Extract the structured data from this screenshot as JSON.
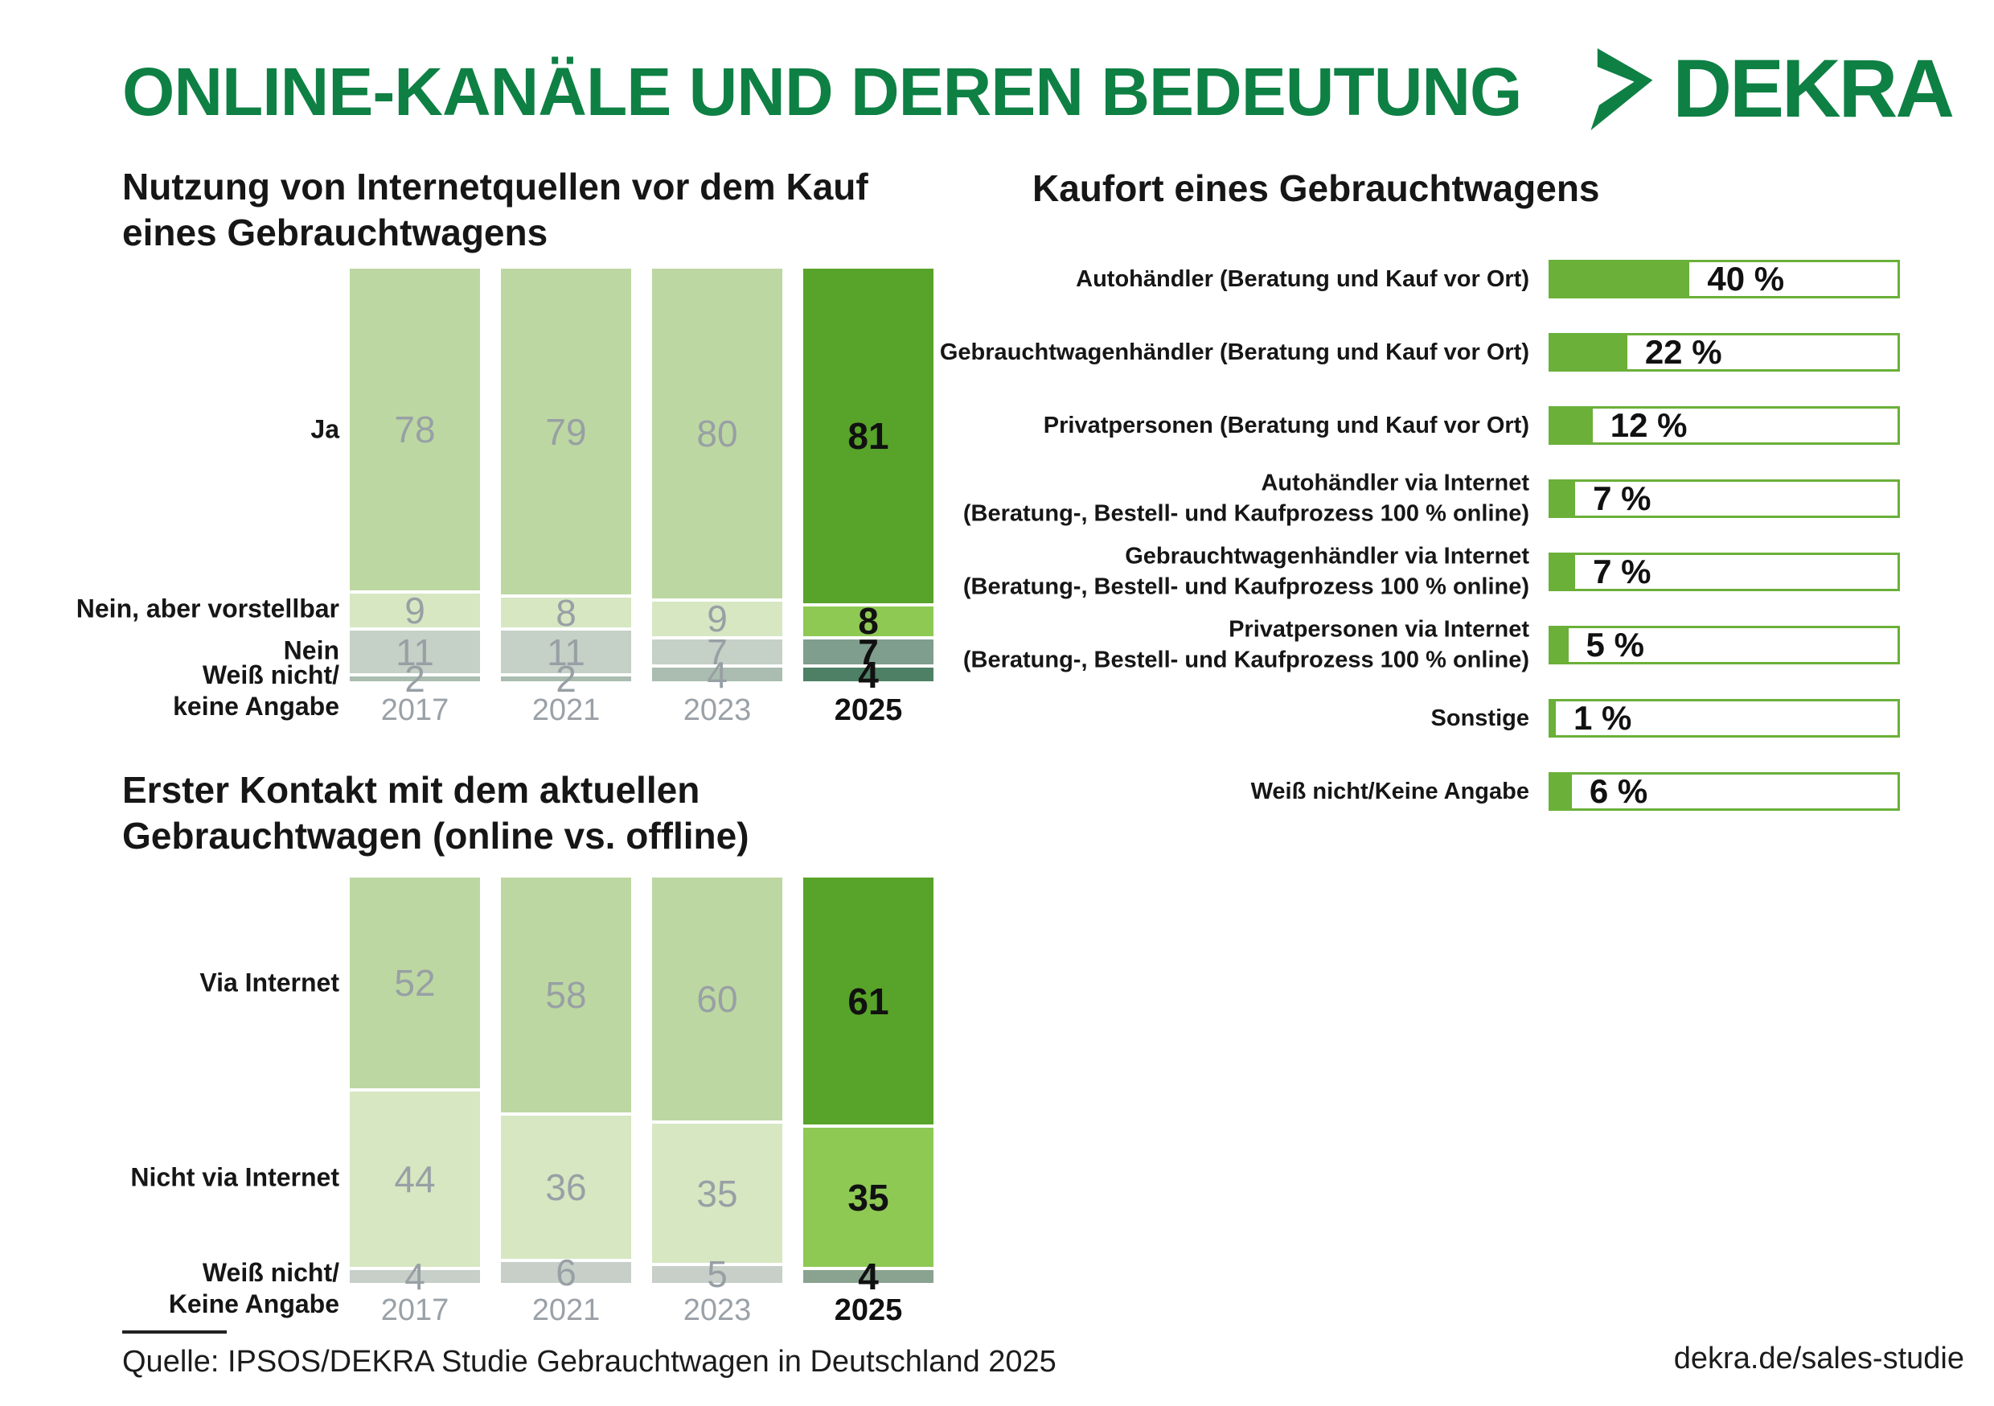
{
  "header": {
    "title": "ONLINE-KANÄLE UND DEREN BEDEUTUNG",
    "brand": "DEKRA"
  },
  "palette": {
    "brand_green": "#0e8044",
    "bar_green": "#6ab039",
    "muted_text": "#9aa1a7",
    "dark_text": "#111111"
  },
  "chart_data": [
    {
      "id": "internetquellen",
      "type": "bar",
      "stacked": true,
      "orientation": "vertical",
      "title": "Nutzung von Internetquellen vor dem Kauf eines Gebrauchtwagens",
      "unit": "percent",
      "ylim": [
        0,
        100
      ],
      "categories": [
        "2017",
        "2021",
        "2023",
        "2025"
      ],
      "highlight_category": "2025",
      "series": [
        {
          "name": "Ja",
          "values": [
            78,
            79,
            80,
            81
          ]
        },
        {
          "name": "Nein, aber vorstellbar",
          "values": [
            9,
            8,
            9,
            8
          ]
        },
        {
          "name": "Nein",
          "values": [
            11,
            11,
            7,
            7
          ]
        },
        {
          "name": "Weiß nicht/\nkeine Angabe",
          "values": [
            2,
            2,
            4,
            4
          ]
        }
      ],
      "colors_muted": [
        "#bdd7a2",
        "#d6e7c2",
        "#c5d0c6",
        "#aabdb0"
      ],
      "colors_highlight": [
        "#58a32a",
        "#8ec954",
        "#7f9e8e",
        "#4e8065"
      ]
    },
    {
      "id": "erster_kontakt",
      "type": "bar",
      "stacked": true,
      "orientation": "vertical",
      "title": "Erster Kontakt mit dem aktuellen Gebrauchtwagen (online vs. offline)",
      "unit": "percent",
      "ylim": [
        0,
        100
      ],
      "categories": [
        "2017",
        "2021",
        "2023",
        "2025"
      ],
      "highlight_category": "2025",
      "series": [
        {
          "name": "Via Internet",
          "values": [
            52,
            58,
            60,
            61
          ]
        },
        {
          "name": "Nicht via Internet",
          "values": [
            44,
            36,
            35,
            35
          ]
        },
        {
          "name": "Weiß nicht/\nKeine Angabe",
          "values": [
            4,
            6,
            5,
            4
          ]
        }
      ],
      "colors_muted": [
        "#bdd7a2",
        "#d6e7c2",
        "#c7cfc8"
      ],
      "colors_highlight": [
        "#58a32a",
        "#8ec954",
        "#8aa391"
      ]
    },
    {
      "id": "kaufort",
      "type": "bar",
      "orientation": "horizontal",
      "title": "Kaufort eines Gebrauchtwagens",
      "unit": "percent",
      "xlim": [
        0,
        100
      ],
      "rows": [
        {
          "label_lines": [
            "Autohändler (Beratung und Kauf vor Ort)"
          ],
          "value": 40,
          "value_label": "40 %"
        },
        {
          "label_lines": [
            "Gebrauchtwagenhändler (Beratung und Kauf vor Ort)"
          ],
          "value": 22,
          "value_label": "22 %"
        },
        {
          "label_lines": [
            "Privatpersonen (Beratung und Kauf vor Ort)"
          ],
          "value": 12,
          "value_label": "12 %"
        },
        {
          "label_lines": [
            "Autohändler via Internet",
            "(Beratung-, Bestell- und Kaufprozess 100 % online)"
          ],
          "value": 7,
          "value_label": "7 %"
        },
        {
          "label_lines": [
            "Gebrauchtwagenhändler via Internet",
            "(Beratung-, Bestell- und Kaufprozess 100 % online)"
          ],
          "value": 7,
          "value_label": "7 %"
        },
        {
          "label_lines": [
            "Privatpersonen via Internet",
            "(Beratung-, Bestell- und Kaufprozess 100 % online)"
          ],
          "value": 5,
          "value_label": "5 %"
        },
        {
          "label_lines": [
            "Sonstige"
          ],
          "value": 1,
          "value_label": "1 %"
        },
        {
          "label_lines": [
            "Weiß nicht/Keine Angabe"
          ],
          "value": 6,
          "value_label": "6 %"
        }
      ]
    }
  ],
  "footer": {
    "source": "Quelle: IPSOS/DEKRA Studie Gebrauchtwagen in Deutschland 2025",
    "link": "dekra.de/sales-studie"
  }
}
